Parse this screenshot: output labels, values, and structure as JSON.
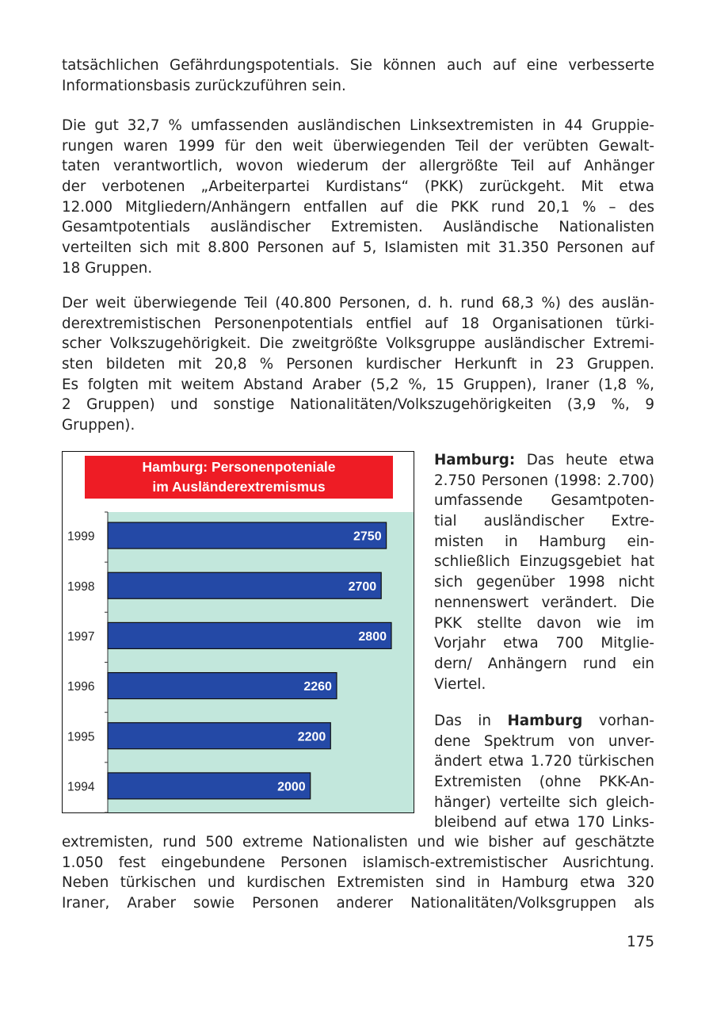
{
  "paragraphs": {
    "p1": [
      "tatsächlichen Gefährdungspotentials. Sie können auch auf eine verbesserte",
      "Informationsbasis zurückzuführen sein."
    ],
    "p2": [
      "Die gut 32,7 % umfassenden ausländischen Linksextremisten in 44 Gruppie-",
      "rungen waren 1999 für den weit überwiegenden Teil der verübten Gewalt-",
      "taten verantwortlich, wovon wiederum der allergrößte Teil auf Anhänger",
      "der verbotenen „Arbeiterpartei Kurdistans“ (PKK) zurückgeht. Mit etwa",
      "12.000 Mitgliedern/Anhängern entfallen auf die PKK rund 20,1 % – des",
      "Gesamtpotentials ausländischer Extremisten. Ausländische Nationalisten",
      "verteilten sich mit 8.800 Personen auf 5, Islamisten mit 31.350 Personen auf",
      "18 Gruppen."
    ],
    "p3": [
      "Der weit überwiegende Teil (40.800 Personen, d. h. rund 68,3 %) des auslän-",
      "derextremistischen Personenpotentials entfiel auf 18 Organisationen türki-",
      "scher Volkszugehörigkeit. Die zweitgrößte Volksgruppe ausländischer Extremi-",
      "sten bildeten mit 20,8 % Personen kurdischer Herkunft in 23 Gruppen.",
      "Es folgten mit weitem Abstand Araber (5,2 %, 15 Gruppen), Iraner (1,8 %,",
      "2 Gruppen) und sonstige Nationalitäten/Volkszugehörigkeiten (3,9 %, 9",
      "Gruppen)."
    ],
    "r1": [
      {
        "b": "Hamburg:",
        "t": " Das heute etwa"
      },
      "2.750 Personen (1998: 2.700)",
      "umfassende Gesamtpoten-",
      "tial ausländischer Extre-",
      "misten in Hamburg ein-",
      "schließlich Einzugsgebiet hat",
      "sich gegenüber 1998 nicht",
      "nennenswert verändert. Die",
      "PKK stellte davon wie im",
      "Vorjahr etwa 700 Mitglie-",
      "dern/ Anhängern rund ein",
      "Viertel."
    ],
    "r2": [
      {
        "a": "Das in ",
        "b": "Hamburg",
        "t": " vorhan-"
      },
      "dene Spektrum von unver-",
      "ändert etwa 1.720 türkischen",
      "Extremisten (ohne PKK-An-",
      "hänger) verteilte sich gleich-",
      "bleibend auf etwa 170 Links-"
    ],
    "p4": [
      "extremisten, rund 500 extreme Nationalisten und wie bisher auf geschätzte",
      "1.050 fest eingebundene Personen islamisch-extremistischer Ausrichtung.",
      "Neben türkischen und kurdischen Extremisten sind in Hamburg etwa 320",
      "Iraner, Araber sowie Personen anderer Nationalitäten/Volksgruppen als"
    ]
  },
  "page_number": "175",
  "chart_data": {
    "type": "bar",
    "orientation": "horizontal",
    "title_lines": [
      "Hamburg: Personenpoteniale",
      "im Ausländerextremismus"
    ],
    "categories": [
      "1999",
      "1998",
      "1997",
      "1996",
      "1995",
      "1994"
    ],
    "values": [
      2750,
      2700,
      2800,
      2260,
      2200,
      2000
    ],
    "data_labels": [
      "2750",
      "2700",
      "2800",
      "2260",
      "2200",
      "2000"
    ],
    "xlim": [
      0,
      3000
    ],
    "grid": false,
    "legend": "none",
    "colors": {
      "bar": "#2449a6",
      "plot_bg": "#c2e7dc",
      "title_bg": "#ee1c25",
      "title_text": "#ffffff"
    }
  }
}
